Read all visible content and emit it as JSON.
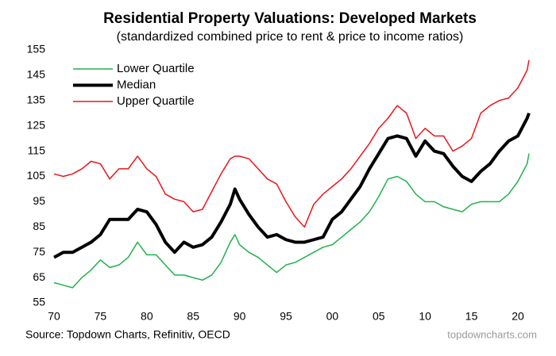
{
  "chart_data": {
    "type": "line",
    "title": "Residential Property Valuations: Developed Markets",
    "subtitle": "(standardized combined price to rent & price to income ratios)",
    "source": "Source: Topdown Charts, Refinitiv, OECD",
    "watermark": "topdowncharts.com",
    "x": [
      1970,
      1971,
      1972,
      1973,
      1974,
      1975,
      1976,
      1977,
      1978,
      1979,
      1980,
      1981,
      1982,
      1983,
      1984,
      1985,
      1986,
      1987,
      1988,
      1989,
      1989.5,
      1990,
      1991,
      1992,
      1993,
      1994,
      1995,
      1996,
      1997,
      1998,
      1999,
      2000,
      2001,
      2002,
      2003,
      2004,
      2005,
      2006,
      2007,
      2008,
      2009,
      2010,
      2011,
      2012,
      2013,
      2014,
      2015,
      2016,
      2017,
      2018,
      2019,
      2020,
      2021,
      2021.2
    ],
    "series": [
      {
        "name": "Lower Quartile",
        "color": "#22b14c",
        "width": 1.5,
        "values": [
          63,
          62,
          61,
          65,
          68,
          72,
          69,
          70,
          73,
          79,
          74,
          74,
          70,
          66,
          66,
          65,
          64,
          66,
          71,
          79,
          82,
          78,
          75,
          73,
          70,
          67,
          70,
          71,
          73,
          75,
          77,
          78,
          81,
          84,
          87,
          91,
          97,
          104,
          105,
          103,
          98,
          95,
          95,
          93,
          92,
          91,
          94,
          95,
          95,
          95,
          98,
          103,
          110,
          114
        ]
      },
      {
        "name": "Median",
        "color": "#000000",
        "width": 4,
        "values": [
          73,
          75,
          75,
          77,
          79,
          82,
          88,
          88,
          88,
          92,
          91,
          86,
          79,
          75,
          79,
          77,
          78,
          81,
          87,
          94,
          100,
          96,
          90,
          85,
          81,
          82,
          80,
          79,
          79,
          80,
          81,
          88,
          91,
          96,
          101,
          108,
          114,
          120,
          121,
          120,
          113,
          119,
          115,
          114,
          109,
          105,
          103,
          107,
          110,
          115,
          119,
          121,
          128,
          130
        ]
      },
      {
        "name": "Upper Quartile",
        "color": "#e8161b",
        "width": 1.5,
        "values": [
          106,
          105,
          106,
          108,
          111,
          110,
          104,
          108,
          108,
          113,
          108,
          105,
          98,
          96,
          95,
          91,
          92,
          99,
          106,
          112,
          113,
          113,
          112,
          108,
          104,
          102,
          95,
          89,
          85,
          94,
          98,
          101,
          104,
          108,
          113,
          118,
          124,
          128,
          133,
          130,
          120,
          124,
          121,
          121,
          115,
          117,
          120,
          130,
          133,
          135,
          136,
          140,
          147,
          151
        ]
      }
    ],
    "xlim": [
      1969.8,
      2021.8
    ],
    "xticks": [
      {
        "value": 1970,
        "label": "70"
      },
      {
        "value": 1975,
        "label": "75"
      },
      {
        "value": 1980,
        "label": "80"
      },
      {
        "value": 1985,
        "label": "85"
      },
      {
        "value": 1990,
        "label": "90"
      },
      {
        "value": 1995,
        "label": "95"
      },
      {
        "value": 2000,
        "label": "00"
      },
      {
        "value": 2005,
        "label": "05"
      },
      {
        "value": 2010,
        "label": "10"
      },
      {
        "value": 2015,
        "label": "15"
      },
      {
        "value": 2020,
        "label": "20"
      }
    ],
    "ylim": [
      55,
      155
    ],
    "yticks": [
      55,
      65,
      75,
      85,
      95,
      105,
      115,
      125,
      135,
      145,
      155
    ],
    "legend": "upper-left"
  }
}
